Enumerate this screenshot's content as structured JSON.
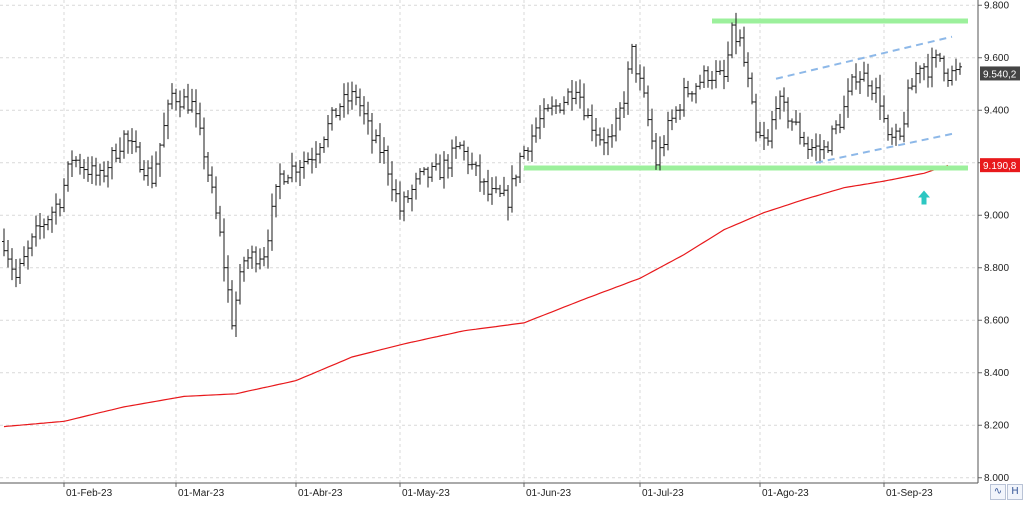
{
  "chart_data": {
    "type": "bar",
    "subtype": "ohlc-price-chart",
    "title": "",
    "xlabel": "",
    "ylabel": "",
    "ylim": [
      7980,
      9820
    ],
    "yticks": [
      8000,
      8200,
      8400,
      8600,
      8800,
      9000,
      9200,
      9400,
      9600,
      9800
    ],
    "ytick_labels": [
      "8.000",
      "8.200",
      "8.400",
      "8.600",
      "8.800",
      "9.000",
      "9.200",
      "9.400",
      "9.600",
      "9.800"
    ],
    "x_tick_labels": [
      {
        "label": "01-Feb-23",
        "bar": 15
      },
      {
        "label": "01-Mar-23",
        "bar": 43
      },
      {
        "label": "01-Abr-23",
        "bar": 73
      },
      {
        "label": "01-May-23",
        "bar": 99
      },
      {
        "label": "01-Jun-23",
        "bar": 130
      },
      {
        "label": "01-Jul-23",
        "bar": 159
      },
      {
        "label": "01-Ago-23",
        "bar": 189
      },
      {
        "label": "01-Sep-23",
        "bar": 220
      }
    ],
    "grid": true,
    "bar_count": 240,
    "anchors": [
      [
        0,
        8900
      ],
      [
        3,
        8760
      ],
      [
        8,
        8930
      ],
      [
        14,
        9060
      ],
      [
        17,
        9220
      ],
      [
        24,
        9140
      ],
      [
        30,
        9300
      ],
      [
        37,
        9140
      ],
      [
        42,
        9460
      ],
      [
        47,
        9420
      ],
      [
        50,
        9240
      ],
      [
        54,
        8920
      ],
      [
        57,
        8600
      ],
      [
        60,
        8830
      ],
      [
        65,
        8860
      ],
      [
        69,
        9150
      ],
      [
        77,
        9230
      ],
      [
        84,
        9420
      ],
      [
        88,
        9460
      ],
      [
        92,
        9290
      ],
      [
        95,
        9230
      ],
      [
        99,
        9020
      ],
      [
        104,
        9140
      ],
      [
        109,
        9170
      ],
      [
        114,
        9260
      ],
      [
        118,
        9160
      ],
      [
        121,
        9080
      ],
      [
        126,
        9060
      ],
      [
        129,
        9220
      ],
      [
        134,
        9360
      ],
      [
        140,
        9440
      ],
      [
        143,
        9500
      ],
      [
        146,
        9370
      ],
      [
        149,
        9300
      ],
      [
        152,
        9280
      ],
      [
        155,
        9450
      ],
      [
        157,
        9620
      ],
      [
        160,
        9440
      ],
      [
        163,
        9200
      ],
      [
        166,
        9330
      ],
      [
        170,
        9460
      ],
      [
        176,
        9540
      ],
      [
        180,
        9520
      ],
      [
        182,
        9690
      ],
      [
        184,
        9660
      ],
      [
        186,
        9500
      ],
      [
        188,
        9300
      ],
      [
        191,
        9270
      ],
      [
        193,
        9440
      ],
      [
        197,
        9360
      ],
      [
        201,
        9260
      ],
      [
        205,
        9250
      ],
      [
        209,
        9360
      ],
      [
        213,
        9540
      ],
      [
        216,
        9520
      ],
      [
        219,
        9440
      ],
      [
        221,
        9280
      ],
      [
        224,
        9290
      ],
      [
        226,
        9450
      ],
      [
        229,
        9580
      ],
      [
        231,
        9560
      ],
      [
        234,
        9600
      ],
      [
        236,
        9540
      ]
    ],
    "last_price_label": "9.540,2",
    "last_price": 9540.2,
    "moving_average": {
      "anchors": [
        [
          0,
          8195
        ],
        [
          15,
          8215
        ],
        [
          30,
          8270
        ],
        [
          45,
          8310
        ],
        [
          58,
          8320
        ],
        [
          73,
          8370
        ],
        [
          87,
          8460
        ],
        [
          100,
          8510
        ],
        [
          115,
          8560
        ],
        [
          130,
          8590
        ],
        [
          145,
          8680
        ],
        [
          159,
          8760
        ],
        [
          170,
          8850
        ],
        [
          180,
          8945
        ],
        [
          190,
          9010
        ],
        [
          200,
          9060
        ],
        [
          210,
          9105
        ],
        [
          220,
          9130
        ],
        [
          230,
          9160
        ],
        [
          236,
          9190
        ]
      ],
      "current_value_label": "9.190,8",
      "current_value": 9190.8,
      "color": "#e8191c"
    },
    "annotations": {
      "resistance_level": 9740,
      "support_level": 9180,
      "channel_upper": {
        "from": [
          193,
          9520
        ],
        "to": [
          237,
          9680
        ]
      },
      "channel_lower": {
        "from": [
          203,
          9200
        ],
        "to": [
          237,
          9310
        ]
      },
      "arrow_bar": 230,
      "arrow_color": "#2cc7c2",
      "level_color": "#9cf09c",
      "channel_color": "#8db8e8"
    }
  },
  "icons": {
    "wave_icon": "∿",
    "h_icon": "H"
  },
  "colors": {
    "background": "#ffffff",
    "bars": "#1b1b1b",
    "grid": "#d9d9d9",
    "price_tag_bg": "#444444",
    "ma_tag_bg": "#e8191c"
  }
}
